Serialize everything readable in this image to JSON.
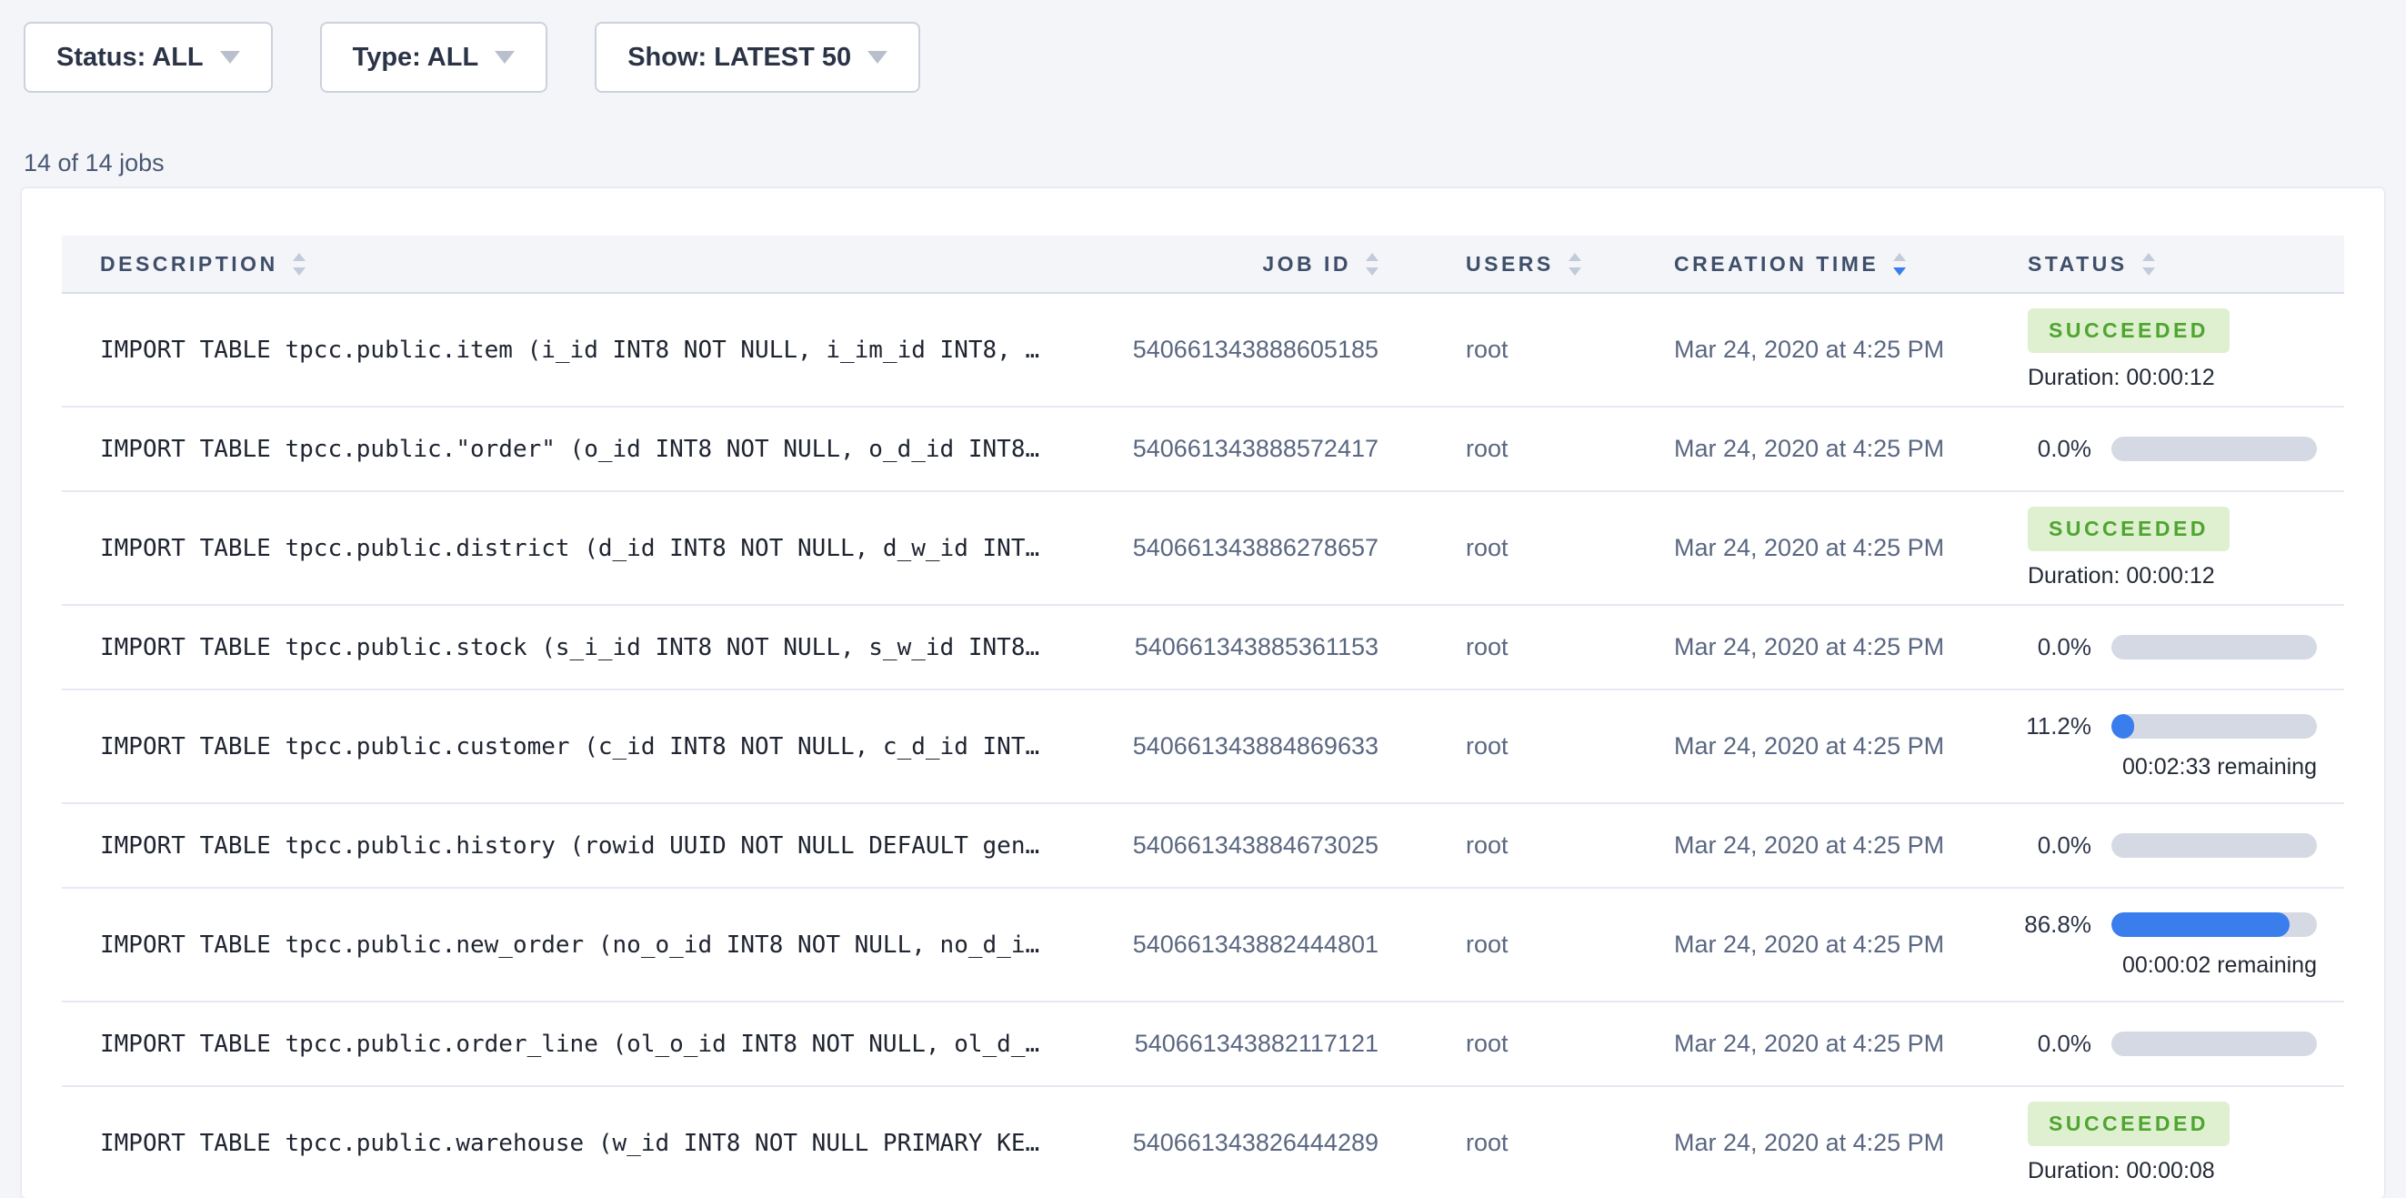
{
  "filters": {
    "status": {
      "label": "Status: ALL"
    },
    "type": {
      "label": "Type: ALL"
    },
    "show": {
      "label": "Show: LATEST 50"
    }
  },
  "summary": "14 of 14 jobs",
  "table": {
    "columns": [
      {
        "label": "DESCRIPTION",
        "sort": "none"
      },
      {
        "label": "JOB ID",
        "sort": "none"
      },
      {
        "label": "USERS",
        "sort": "none"
      },
      {
        "label": "CREATION TIME",
        "sort": "desc"
      },
      {
        "label": "STATUS",
        "sort": "none"
      }
    ],
    "rows": [
      {
        "description": "IMPORT TABLE tpcc.public.item (i_id INT8 NOT NULL, i_im_id INT8, …",
        "job_id": "540661343888605185",
        "user": "root",
        "creation_time": "Mar 24, 2020 at 4:25 PM",
        "status": {
          "type": "succeeded",
          "label": "SUCCEEDED",
          "duration": "Duration: 00:00:12"
        }
      },
      {
        "description": "IMPORT TABLE tpcc.public.\"order\" (o_id INT8 NOT NULL, o_d_id INT8…",
        "job_id": "540661343888572417",
        "user": "root",
        "creation_time": "Mar 24, 2020 at 4:25 PM",
        "status": {
          "type": "progress",
          "percent": "0.0%",
          "fraction": 0
        }
      },
      {
        "description": "IMPORT TABLE tpcc.public.district (d_id INT8 NOT NULL, d_w_id INT…",
        "job_id": "540661343886278657",
        "user": "root",
        "creation_time": "Mar 24, 2020 at 4:25 PM",
        "status": {
          "type": "succeeded",
          "label": "SUCCEEDED",
          "duration": "Duration: 00:00:12"
        }
      },
      {
        "description": "IMPORT TABLE tpcc.public.stock (s_i_id INT8 NOT NULL, s_w_id INT8…",
        "job_id": "540661343885361153",
        "user": "root",
        "creation_time": "Mar 24, 2020 at 4:25 PM",
        "status": {
          "type": "progress",
          "percent": "0.0%",
          "fraction": 0
        }
      },
      {
        "description": "IMPORT TABLE tpcc.public.customer (c_id INT8 NOT NULL, c_d_id INT…",
        "job_id": "540661343884869633",
        "user": "root",
        "creation_time": "Mar 24, 2020 at 4:25 PM",
        "status": {
          "type": "progress",
          "percent": "11.2%",
          "fraction": 0.112,
          "remaining": "00:02:33 remaining"
        }
      },
      {
        "description": "IMPORT TABLE tpcc.public.history (rowid UUID NOT NULL DEFAULT gen…",
        "job_id": "540661343884673025",
        "user": "root",
        "creation_time": "Mar 24, 2020 at 4:25 PM",
        "status": {
          "type": "progress",
          "percent": "0.0%",
          "fraction": 0
        }
      },
      {
        "description": "IMPORT TABLE tpcc.public.new_order (no_o_id INT8 NOT NULL, no_d_i…",
        "job_id": "540661343882444801",
        "user": "root",
        "creation_time": "Mar 24, 2020 at 4:25 PM",
        "status": {
          "type": "progress",
          "percent": "86.8%",
          "fraction": 0.868,
          "remaining": "00:00:02 remaining"
        }
      },
      {
        "description": "IMPORT TABLE tpcc.public.order_line (ol_o_id INT8 NOT NULL, ol_d_…",
        "job_id": "540661343882117121",
        "user": "root",
        "creation_time": "Mar 24, 2020 at 4:25 PM",
        "status": {
          "type": "progress",
          "percent": "0.0%",
          "fraction": 0
        }
      },
      {
        "description": "IMPORT TABLE tpcc.public.warehouse (w_id INT8 NOT NULL PRIMARY KE…",
        "job_id": "540661343826444289",
        "user": "root",
        "creation_time": "Mar 24, 2020 at 4:25 PM",
        "status": {
          "type": "succeeded",
          "label": "SUCCEEDED",
          "duration": "Duration: 00:00:08"
        }
      }
    ]
  },
  "colors": {
    "accent_blue": "#3a7ded",
    "success_text": "#4ea52f",
    "success_bg": "#dff0d1",
    "progress_track": "#d5d9e3",
    "page_bg": "#f4f5f9"
  }
}
